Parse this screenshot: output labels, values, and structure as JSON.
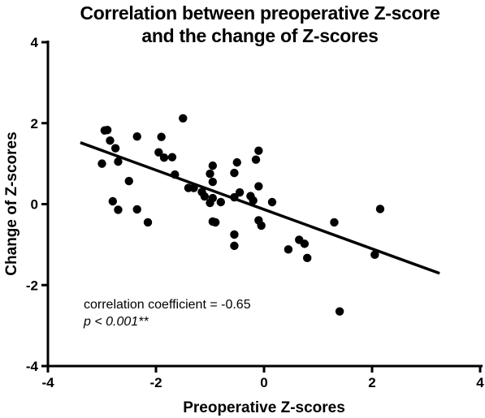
{
  "chart_data": {
    "type": "scatter",
    "title_lines": [
      "Correlation between preoperative Z-score",
      "and the change of Z-scores"
    ],
    "xlabel": "Preoperative Z-scores",
    "ylabel": "Change of Z-scores",
    "xlim": [
      -4,
      4
    ],
    "ylim": [
      -4,
      4
    ],
    "xticks": [
      -4,
      -2,
      0,
      2,
      4
    ],
    "yticks": [
      4,
      2,
      0,
      -2,
      -4
    ],
    "xtick_labels": [
      "-4",
      "-2",
      "0",
      "2",
      "4"
    ],
    "ytick_labels": [
      "4",
      "2",
      "0",
      "-2",
      "-4"
    ],
    "grid": false,
    "annotation_line1": "correlation coefficient = -0.65",
    "annotation_line2": "p < 0.001**",
    "regression_line": {
      "x": [
        -3.4,
        3.25
      ],
      "y": [
        1.52,
        -1.71
      ]
    },
    "points": [
      {
        "x": -3.0,
        "y": 1.0
      },
      {
        "x": -2.95,
        "y": 1.82
      },
      {
        "x": -2.9,
        "y": 1.83
      },
      {
        "x": -2.85,
        "y": 1.57
      },
      {
        "x": -2.75,
        "y": 1.38
      },
      {
        "x": -2.7,
        "y": 1.05
      },
      {
        "x": -2.8,
        "y": 0.07
      },
      {
        "x": -2.7,
        "y": -0.14
      },
      {
        "x": -2.5,
        "y": 0.57
      },
      {
        "x": -2.35,
        "y": 1.67
      },
      {
        "x": -2.35,
        "y": -0.13
      },
      {
        "x": -2.15,
        "y": -0.45
      },
      {
        "x": -1.95,
        "y": 1.28
      },
      {
        "x": -1.9,
        "y": 1.66
      },
      {
        "x": -1.85,
        "y": 1.15
      },
      {
        "x": -1.7,
        "y": 1.16
      },
      {
        "x": -1.65,
        "y": 0.73
      },
      {
        "x": -1.5,
        "y": 2.12
      },
      {
        "x": -1.4,
        "y": 0.4
      },
      {
        "x": -1.3,
        "y": 0.4
      },
      {
        "x": -1.15,
        "y": 0.3
      },
      {
        "x": -1.1,
        "y": 0.19
      },
      {
        "x": -1.0,
        "y": 0.75
      },
      {
        "x": -0.95,
        "y": 0.95
      },
      {
        "x": -0.95,
        "y": 0.55
      },
      {
        "x": -0.95,
        "y": 0.15
      },
      {
        "x": -1.0,
        "y": 0.03
      },
      {
        "x": -0.95,
        "y": -0.43
      },
      {
        "x": -0.9,
        "y": -0.45
      },
      {
        "x": -0.8,
        "y": 0.05
      },
      {
        "x": -0.55,
        "y": 0.77
      },
      {
        "x": -0.5,
        "y": 1.03
      },
      {
        "x": -0.55,
        "y": 0.17
      },
      {
        "x": -0.45,
        "y": 0.29
      },
      {
        "x": -0.55,
        "y": -0.75
      },
      {
        "x": -0.55,
        "y": -1.03
      },
      {
        "x": -0.25,
        "y": 0.2
      },
      {
        "x": -0.2,
        "y": 0.09
      },
      {
        "x": -0.15,
        "y": 1.1
      },
      {
        "x": -0.1,
        "y": 1.32
      },
      {
        "x": -0.1,
        "y": 0.44
      },
      {
        "x": -0.1,
        "y": -0.4
      },
      {
        "x": -0.05,
        "y": -0.53
      },
      {
        "x": 0.15,
        "y": 0.05
      },
      {
        "x": 0.45,
        "y": -1.12
      },
      {
        "x": 0.65,
        "y": -0.88
      },
      {
        "x": 0.75,
        "y": -0.98
      },
      {
        "x": 0.8,
        "y": -1.33
      },
      {
        "x": 1.3,
        "y": -0.45
      },
      {
        "x": 1.4,
        "y": -2.65
      },
      {
        "x": 2.05,
        "y": -1.25
      },
      {
        "x": 2.15,
        "y": -0.12
      }
    ]
  }
}
